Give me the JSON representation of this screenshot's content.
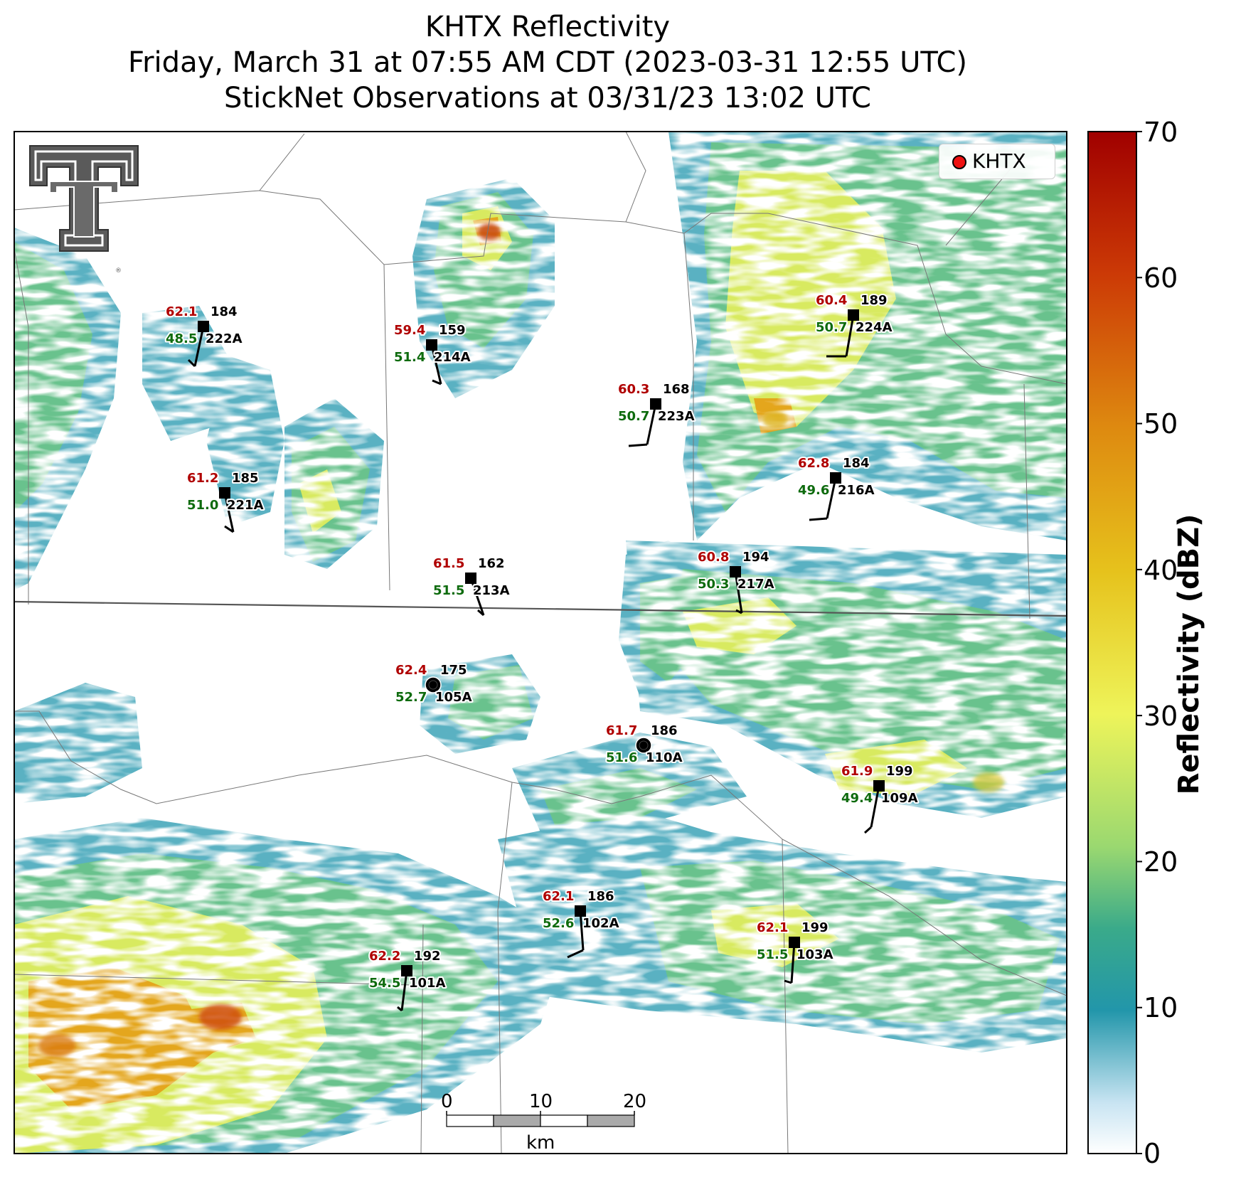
{
  "title": {
    "line1": "KHTX Reflectivity",
    "line2": "Friday, March 31 at 07:55 AM CDT (2023-03-31 12:55 UTC)",
    "line3": "StickNet Observations at 03/31/23 13:02 UTC"
  },
  "legend": {
    "label": "KHTX",
    "marker_color": "#ee1111"
  },
  "colorbar": {
    "label": "Reflectivity (dBZ)",
    "min": 0,
    "max": 70,
    "ticks": [
      "70",
      "60",
      "50",
      "40",
      "30",
      "20",
      "10",
      "0"
    ],
    "colors": [
      "#ffffff",
      "#c8e4f2",
      "#2296aa",
      "#3aaa8a",
      "#9ad870",
      "#eef45a",
      "#e6c21c",
      "#de8a10",
      "#cc3a06",
      "#a00000"
    ]
  },
  "scale_bar": {
    "ticks": [
      "0",
      "10",
      "20"
    ],
    "unit": "km"
  },
  "logo": {
    "name": "texas-tech-double-t-logo"
  },
  "chart_data": {
    "type": "station-plot",
    "units": {
      "temperature": "°F",
      "dewpoint": "°F"
    },
    "stations": [
      {
        "id": "222A",
        "temp": "62.1",
        "dew": "48.5",
        "wind_dir": "184"
      },
      {
        "id": "214A",
        "temp": "59.4",
        "dew": "51.4",
        "wind_dir": "159"
      },
      {
        "id": "223A",
        "temp": "60.3",
        "dew": "50.7",
        "wind_dir": "168"
      },
      {
        "id": "224A",
        "temp": "60.4",
        "dew": "50.7",
        "wind_dir": "189"
      },
      {
        "id": "221A",
        "temp": "61.2",
        "dew": "51.0",
        "wind_dir": "185"
      },
      {
        "id": "216A",
        "temp": "62.8",
        "dew": "49.6",
        "wind_dir": "184"
      },
      {
        "id": "213A",
        "temp": "61.5",
        "dew": "51.5",
        "wind_dir": "162"
      },
      {
        "id": "217A",
        "temp": "60.8",
        "dew": "50.3",
        "wind_dir": "194"
      },
      {
        "id": "105A",
        "temp": "62.4",
        "dew": "52.7",
        "wind_dir": "175"
      },
      {
        "id": "110A",
        "temp": "61.7",
        "dew": "51.6",
        "wind_dir": "186"
      },
      {
        "id": "109A",
        "temp": "61.9",
        "dew": "49.4",
        "wind_dir": "199"
      },
      {
        "id": "102A",
        "temp": "62.1",
        "dew": "52.6",
        "wind_dir": "186"
      },
      {
        "id": "103A",
        "temp": "62.1",
        "dew": "51.5",
        "wind_dir": "199"
      },
      {
        "id": "101A",
        "temp": "62.2",
        "dew": "54.5",
        "wind_dir": "192"
      }
    ]
  }
}
